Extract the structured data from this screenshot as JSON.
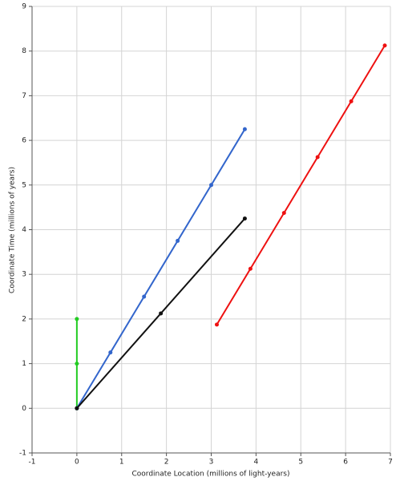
{
  "chart_data": {
    "type": "line",
    "xlabel": "Coordinate Location (millions of light-years)",
    "ylabel": "Coordinate Time (millions of years)",
    "xlim": [
      -1,
      7
    ],
    "ylim": [
      -1,
      9
    ],
    "xticks": [
      -1,
      0,
      1,
      2,
      3,
      4,
      5,
      6,
      7
    ],
    "yticks": [
      -1,
      0,
      1,
      2,
      3,
      4,
      5,
      6,
      7,
      8,
      9
    ],
    "grid": true,
    "series": [
      {
        "color": "#22cc22",
        "x": [
          0,
          0,
          0
        ],
        "values": [
          0,
          1,
          2
        ]
      },
      {
        "color": "#3366cc",
        "x": [
          0,
          0.75,
          1.5,
          2.25,
          3,
          3.75
        ],
        "values": [
          0,
          1.25,
          2.5,
          3.75,
          5,
          6.25
        ]
      },
      {
        "color": "#111111",
        "x": [
          0,
          1.875,
          3.75
        ],
        "values": [
          0,
          2.125,
          4.25
        ]
      },
      {
        "color": "#ee1111",
        "x": [
          3.125,
          3.875,
          4.625,
          5.375,
          6.125,
          6.875
        ],
        "values": [
          1.875,
          3.125,
          4.375,
          5.625,
          6.875,
          8.125
        ]
      }
    ]
  }
}
